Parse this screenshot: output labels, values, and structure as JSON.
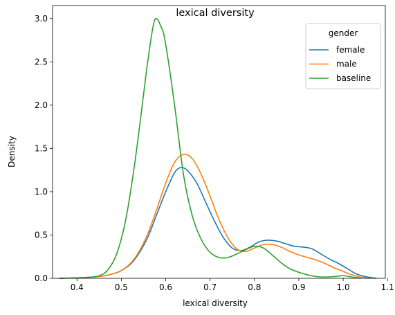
{
  "chart_data": {
    "type": "line",
    "kind": "kde",
    "title": "lexical diversity",
    "xlabel": "lexical diversity",
    "ylabel": "Density",
    "xlim": [
      0.345,
      1.095
    ],
    "ylim": [
      0,
      3.15
    ],
    "xticks": [
      0.4,
      0.5,
      0.6,
      0.7,
      0.8,
      0.9,
      1.0,
      1.1
    ],
    "xtick_labels": [
      "0.4",
      "0.5",
      "0.6",
      "0.7",
      "0.8",
      "0.9",
      "1.0",
      "1.1"
    ],
    "yticks": [
      0,
      0.5,
      1.0,
      1.5,
      2.0,
      2.5,
      3.0
    ],
    "ytick_labels": [
      "0.0",
      "0.5",
      "1.0",
      "1.5",
      "2.0",
      "2.5",
      "3.0"
    ],
    "grid": false,
    "legend": {
      "title": "gender",
      "position": "top-right"
    },
    "series": [
      {
        "name": "female",
        "color": "#1f77b4",
        "points": [
          [
            0.36,
            0.0
          ],
          [
            0.4,
            0.005
          ],
          [
            0.45,
            0.02
          ],
          [
            0.48,
            0.05
          ],
          [
            0.5,
            0.09
          ],
          [
            0.52,
            0.16
          ],
          [
            0.54,
            0.29
          ],
          [
            0.56,
            0.48
          ],
          [
            0.58,
            0.74
          ],
          [
            0.6,
            1.0
          ],
          [
            0.62,
            1.22
          ],
          [
            0.635,
            1.28
          ],
          [
            0.65,
            1.24
          ],
          [
            0.67,
            1.1
          ],
          [
            0.69,
            0.88
          ],
          [
            0.71,
            0.66
          ],
          [
            0.73,
            0.47
          ],
          [
            0.75,
            0.35
          ],
          [
            0.77,
            0.32
          ],
          [
            0.79,
            0.36
          ],
          [
            0.81,
            0.42
          ],
          [
            0.83,
            0.44
          ],
          [
            0.85,
            0.43
          ],
          [
            0.87,
            0.4
          ],
          [
            0.89,
            0.37
          ],
          [
            0.91,
            0.36
          ],
          [
            0.93,
            0.34
          ],
          [
            0.95,
            0.28
          ],
          [
            0.97,
            0.22
          ],
          [
            0.99,
            0.17
          ],
          [
            1.01,
            0.11
          ],
          [
            1.03,
            0.05
          ],
          [
            1.05,
            0.02
          ],
          [
            1.075,
            0.0
          ]
        ]
      },
      {
        "name": "male",
        "color": "#ff7f0e",
        "points": [
          [
            0.36,
            0.0
          ],
          [
            0.4,
            0.005
          ],
          [
            0.45,
            0.02
          ],
          [
            0.48,
            0.05
          ],
          [
            0.5,
            0.09
          ],
          [
            0.52,
            0.17
          ],
          [
            0.54,
            0.31
          ],
          [
            0.56,
            0.52
          ],
          [
            0.58,
            0.8
          ],
          [
            0.6,
            1.1
          ],
          [
            0.62,
            1.34
          ],
          [
            0.64,
            1.43
          ],
          [
            0.66,
            1.38
          ],
          [
            0.68,
            1.2
          ],
          [
            0.7,
            0.95
          ],
          [
            0.72,
            0.68
          ],
          [
            0.74,
            0.47
          ],
          [
            0.76,
            0.34
          ],
          [
            0.78,
            0.31
          ],
          [
            0.8,
            0.35
          ],
          [
            0.82,
            0.39
          ],
          [
            0.84,
            0.39
          ],
          [
            0.86,
            0.36
          ],
          [
            0.88,
            0.31
          ],
          [
            0.9,
            0.27
          ],
          [
            0.92,
            0.24
          ],
          [
            0.94,
            0.21
          ],
          [
            0.96,
            0.17
          ],
          [
            0.98,
            0.12
          ],
          [
            1.0,
            0.08
          ],
          [
            1.02,
            0.04
          ],
          [
            1.04,
            0.015
          ],
          [
            1.06,
            0.0
          ]
        ]
      },
      {
        "name": "baseline",
        "color": "#2ca02c",
        "points": [
          [
            0.36,
            0.0
          ],
          [
            0.42,
            0.01
          ],
          [
            0.45,
            0.03
          ],
          [
            0.47,
            0.1
          ],
          [
            0.49,
            0.29
          ],
          [
            0.51,
            0.68
          ],
          [
            0.53,
            1.32
          ],
          [
            0.55,
            2.12
          ],
          [
            0.56,
            2.52
          ],
          [
            0.575,
            2.98
          ],
          [
            0.59,
            2.9
          ],
          [
            0.6,
            2.7
          ],
          [
            0.62,
            2.0
          ],
          [
            0.64,
            1.2
          ],
          [
            0.66,
            0.72
          ],
          [
            0.68,
            0.45
          ],
          [
            0.7,
            0.3
          ],
          [
            0.72,
            0.24
          ],
          [
            0.74,
            0.24
          ],
          [
            0.76,
            0.28
          ],
          [
            0.78,
            0.33
          ],
          [
            0.8,
            0.37
          ],
          [
            0.82,
            0.35
          ],
          [
            0.84,
            0.27
          ],
          [
            0.86,
            0.18
          ],
          [
            0.88,
            0.11
          ],
          [
            0.9,
            0.07
          ],
          [
            0.92,
            0.04
          ],
          [
            0.94,
            0.02
          ],
          [
            0.96,
            0.015
          ],
          [
            0.98,
            0.02
          ],
          [
            1.0,
            0.03
          ],
          [
            1.02,
            0.015
          ],
          [
            1.04,
            0.0
          ]
        ]
      }
    ]
  }
}
